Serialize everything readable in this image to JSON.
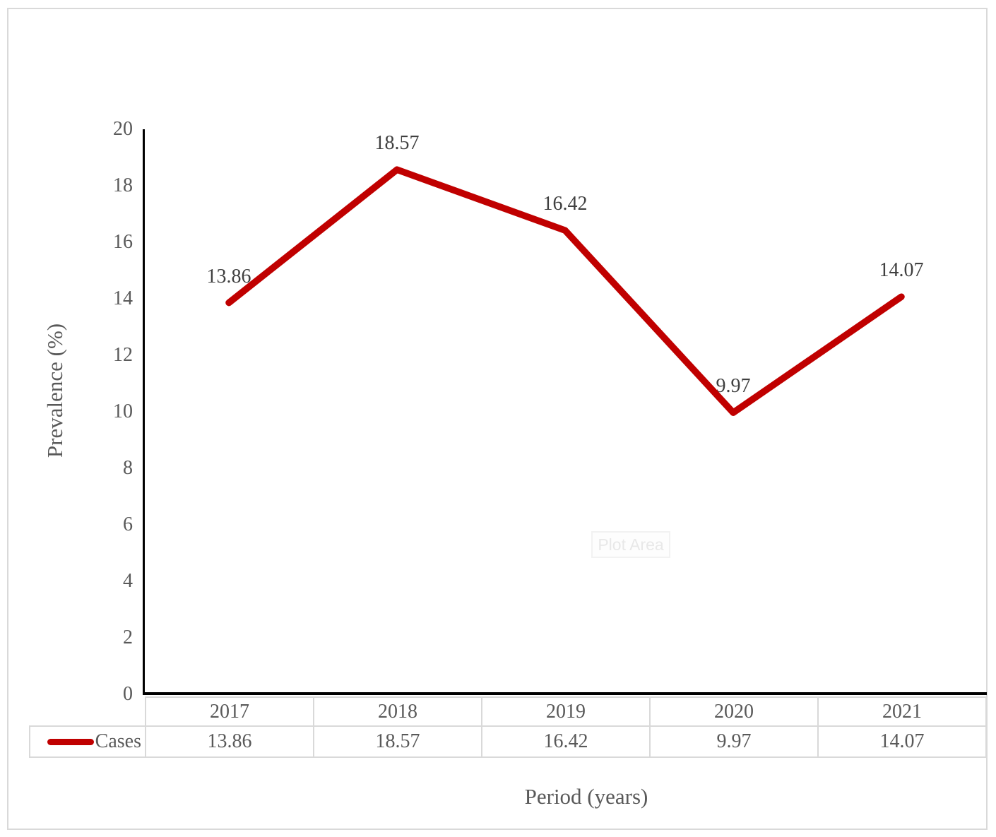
{
  "chart_data": {
    "type": "line",
    "categories": [
      "2017",
      "2018",
      "2019",
      "2020",
      "2021"
    ],
    "series": [
      {
        "name": "Cases",
        "values": [
          13.86,
          18.57,
          16.42,
          9.97,
          14.07
        ]
      }
    ],
    "data_labels": [
      "13.86",
      "18.57",
      "16.42",
      "9.97",
      "14.07"
    ],
    "title": "",
    "xlabel": "Period (years)",
    "ylabel": "Prevalence (%)",
    "ylim": [
      0,
      20
    ],
    "ytick_step": 2,
    "yticks": [
      "20",
      "18",
      "16",
      "14",
      "12",
      "10",
      "8",
      "6",
      "4",
      "2",
      "0"
    ],
    "grid": false,
    "legend_position": "data-table-left",
    "line_color": "#C00000"
  },
  "tooltip": {
    "text": "Plot Area"
  },
  "colors": {
    "series_line": "#C00000",
    "axis_line": "#000000",
    "table_border": "#D9D9D9",
    "frame_border": "#D9D9D9",
    "axis_text": "#595959",
    "data_label_text": "#404040",
    "tooltip_text": "#E8E8E8"
  }
}
